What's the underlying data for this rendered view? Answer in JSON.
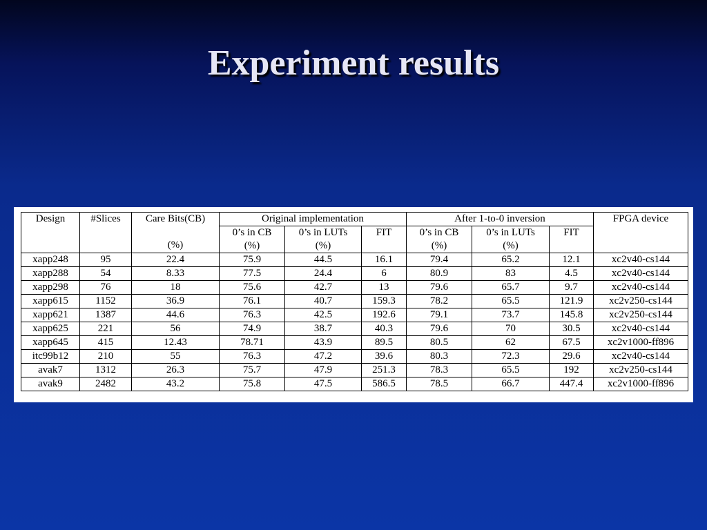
{
  "title": "Experiment results",
  "table": {
    "headers": {
      "design": "Design",
      "slices": "#Slices",
      "care_bits": "Care Bits(CB)",
      "care_bits_unit": "(%)",
      "fpga": "FPGA device"
    },
    "groups": [
      "Original implementation",
      "After 1-to-0 inversion"
    ],
    "subheaders": [
      {
        "label": "0’s in CB",
        "unit": "(%)"
      },
      {
        "label": "0’s in LUTs",
        "unit": "(%)"
      },
      {
        "label": "FIT"
      },
      {
        "label": "0’s in CB",
        "unit": "(%)"
      },
      {
        "label": "0’s in LUTs",
        "unit": "(%)"
      },
      {
        "label": "FIT"
      }
    ],
    "rows": [
      [
        "xapp248",
        "95",
        "22.4",
        "75.9",
        "44.5",
        "16.1",
        "79.4",
        "65.2",
        "12.1",
        "xc2v40-cs144"
      ],
      [
        "xapp288",
        "54",
        "8.33",
        "77.5",
        "24.4",
        "6",
        "80.9",
        "83",
        "4.5",
        "xc2v40-cs144"
      ],
      [
        "xapp298",
        "76",
        "18",
        "75.6",
        "42.7",
        "13",
        "79.6",
        "65.7",
        "9.7",
        "xc2v40-cs144"
      ],
      [
        "xapp615",
        "1152",
        "36.9",
        "76.1",
        "40.7",
        "159.3",
        "78.2",
        "65.5",
        "121.9",
        "xc2v250-cs144"
      ],
      [
        "xapp621",
        "1387",
        "44.6",
        "76.3",
        "42.5",
        "192.6",
        "79.1",
        "73.7",
        "145.8",
        "xc2v250-cs144"
      ],
      [
        "xapp625",
        "221",
        "56",
        "74.9",
        "38.7",
        "40.3",
        "79.6",
        "70",
        "30.5",
        "xc2v40-cs144"
      ],
      [
        "xapp645",
        "415",
        "12.43",
        "78.71",
        "43.9",
        "89.5",
        "80.5",
        "62",
        "67.5",
        "xc2v1000-ff896"
      ],
      [
        "itc99b12",
        "210",
        "55",
        "76.3",
        "47.2",
        "39.6",
        "80.3",
        "72.3",
        "29.6",
        "xc2v40-cs144"
      ],
      [
        "avak7",
        "1312",
        "26.3",
        "75.7",
        "47.9",
        "251.3",
        "78.3",
        "65.5",
        "192",
        "xc2v250-cs144"
      ],
      [
        "avak9",
        "2482",
        "43.2",
        "75.8",
        "47.5",
        "586.5",
        "78.5",
        "66.7",
        "447.4",
        "xc2v1000-ff896"
      ]
    ]
  }
}
